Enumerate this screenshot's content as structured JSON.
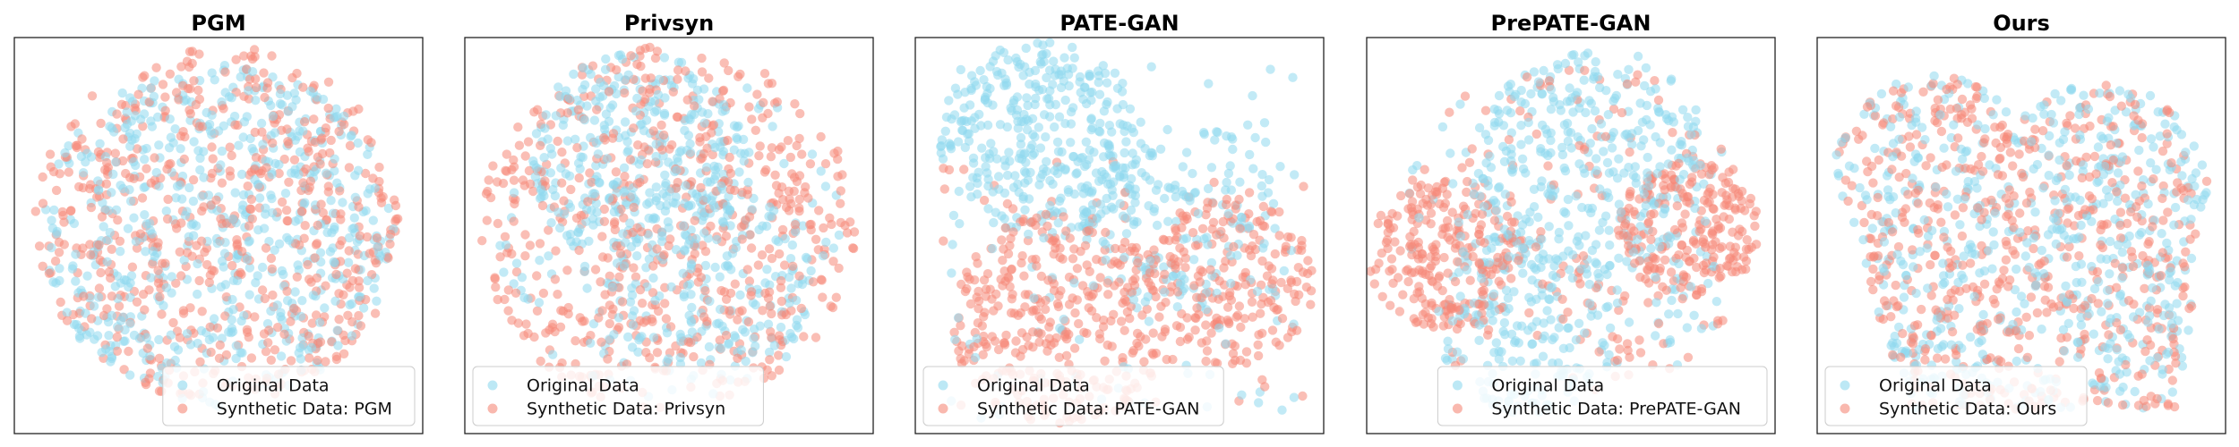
{
  "colors": {
    "original": "#8fd9ef",
    "synthetic": "#f58878"
  },
  "chart_data": [
    {
      "type": "scatter",
      "title": "PGM",
      "xlabel": "",
      "ylabel": "",
      "legend_position": "lower-right",
      "series": [
        {
          "name": "Original Data",
          "color_key": "original"
        },
        {
          "name": "Synthetic Data: PGM",
          "color_key": "synthetic"
        }
      ],
      "points_per_series": 600,
      "distribution": "disk, both series mixed uniformly"
    },
    {
      "type": "scatter",
      "title": "Privsyn",
      "xlabel": "",
      "ylabel": "",
      "legend_position": "lower-left",
      "series": [
        {
          "name": "Original Data",
          "color_key": "original"
        },
        {
          "name": "Synthetic Data: Privsyn",
          "color_key": "synthetic"
        }
      ],
      "points_per_series": 600,
      "distribution": "disk with original clusters in upper and lower lobes"
    },
    {
      "type": "scatter",
      "title": "PATE-GAN",
      "xlabel": "",
      "ylabel": "",
      "legend_position": "lower-left",
      "series": [
        {
          "name": "Original Data",
          "color_key": "original"
        },
        {
          "name": "Synthetic Data: PATE-GAN",
          "color_key": "synthetic"
        }
      ],
      "points_per_series": 600,
      "distribution": "original concentrated upper-left, synthetic concentrated lower"
    },
    {
      "type": "scatter",
      "title": "PrePATE-GAN",
      "xlabel": "",
      "ylabel": "",
      "legend_position": "lower-right",
      "series": [
        {
          "name": "Original Data",
          "color_key": "original"
        },
        {
          "name": "Synthetic Data: PrePATE-GAN",
          "color_key": "synthetic"
        }
      ],
      "points_per_series": 600,
      "distribution": "disk, original upper, synthetic left and right"
    },
    {
      "type": "scatter",
      "title": "Ours",
      "xlabel": "",
      "ylabel": "",
      "legend_position": "lower-left",
      "series": [
        {
          "name": "Original Data",
          "color_key": "original"
        },
        {
          "name": "Synthetic Data: Ours",
          "color_key": "synthetic"
        }
      ],
      "points_per_series": 600,
      "distribution": "heart/V-shape, both series overlapping"
    }
  ]
}
